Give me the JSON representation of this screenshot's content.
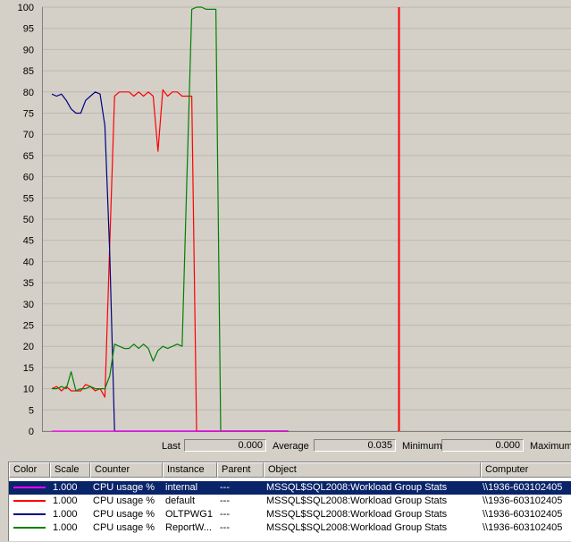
{
  "chart_data": {
    "type": "line",
    "ylim": [
      0,
      100
    ],
    "y_ticks": [
      "100",
      "95",
      "90",
      "85",
      "80",
      "75",
      "70",
      "65",
      "60",
      "55",
      "50",
      "45",
      "40",
      "35",
      "30",
      "25",
      "20",
      "15",
      "10",
      "5",
      "0"
    ],
    "grid": true,
    "time_bar_position_pct": 0.9,
    "series": [
      {
        "color": "#ff0000",
        "values": [
          10,
          10.5,
          9.5,
          10.5,
          9.5,
          9.5,
          9.5,
          11,
          10.5,
          9.5,
          10,
          8,
          44,
          79,
          80,
          80,
          80,
          79,
          80,
          79,
          80,
          79,
          66,
          80.5,
          79,
          80,
          80,
          79,
          79,
          79,
          0,
          0,
          0,
          0,
          0,
          0,
          0,
          0,
          0,
          0,
          0,
          0,
          0,
          0,
          0,
          0,
          0,
          0,
          0,
          0
        ]
      },
      {
        "color": "#000080",
        "values": [
          79.5,
          79,
          79.5,
          78,
          76,
          75,
          75,
          78,
          79,
          80,
          79.5,
          72,
          42,
          0,
          0,
          0,
          0,
          0,
          0,
          0,
          0,
          0,
          0,
          0,
          0,
          0,
          0,
          0,
          0,
          0,
          0,
          0,
          0,
          0,
          0,
          0,
          0,
          0,
          0,
          0,
          0,
          0,
          0,
          0,
          0,
          0,
          0,
          0,
          0,
          0
        ]
      },
      {
        "color": "#008000",
        "values": [
          10,
          10,
          10.5,
          10,
          14,
          9.5,
          10,
          10,
          10.5,
          10,
          10,
          10,
          13,
          20.5,
          20,
          19.5,
          19.5,
          20.5,
          19.5,
          20.5,
          19.5,
          16.5,
          19,
          20,
          19.5,
          20,
          20.5,
          20,
          60,
          99.5,
          100,
          100,
          99.5,
          99.5,
          99.5,
          0,
          0,
          0,
          0,
          0,
          0,
          0,
          0,
          0,
          0,
          0,
          0,
          0,
          0,
          0
        ]
      },
      {
        "color": "#ff00ff",
        "values": [
          0,
          0,
          0,
          0,
          0,
          0,
          0,
          0,
          0,
          0,
          0,
          0,
          0,
          0,
          0,
          0,
          0,
          0,
          0,
          0,
          0,
          0,
          0,
          0,
          0,
          0,
          0,
          0,
          0,
          0,
          0,
          0,
          0,
          0,
          0,
          0,
          0,
          0,
          0,
          0,
          0,
          0,
          0,
          0,
          0,
          0,
          0,
          0,
          0,
          0
        ]
      }
    ]
  },
  "stats": {
    "last_label": "Last",
    "last_value": "0.000",
    "average_label": "Average",
    "average_value": "0.035",
    "minimum_label": "Minimum",
    "minimum_value": "0.000",
    "maximum_label": "Maximum"
  },
  "counter_list": {
    "columns": [
      "Color",
      "Scale",
      "Counter",
      "Instance",
      "Parent",
      "Object",
      "Computer"
    ],
    "rows": [
      {
        "color": "#ff00ff",
        "scale": "1.000",
        "counter": "CPU usage %",
        "instance": "internal",
        "parent": "---",
        "object": "MSSQL$SQL2008:Workload Group Stats",
        "computer": "\\\\1936-603102405"
      },
      {
        "color": "#ff0000",
        "scale": "1.000",
        "counter": "CPU usage %",
        "instance": "default",
        "parent": "---",
        "object": "MSSQL$SQL2008:Workload Group Stats",
        "computer": "\\\\1936-603102405"
      },
      {
        "color": "#000080",
        "scale": "1.000",
        "counter": "CPU usage %",
        "instance": "OLTPWG1",
        "parent": "---",
        "object": "MSSQL$SQL2008:Workload Group Stats",
        "computer": "\\\\1936-603102405"
      },
      {
        "color": "#008000",
        "scale": "1.000",
        "counter": "CPU usage %",
        "instance": "ReportW...",
        "parent": "---",
        "object": "MSSQL$SQL2008:Workload Group Stats",
        "computer": "\\\\1936-603102405"
      }
    ]
  }
}
